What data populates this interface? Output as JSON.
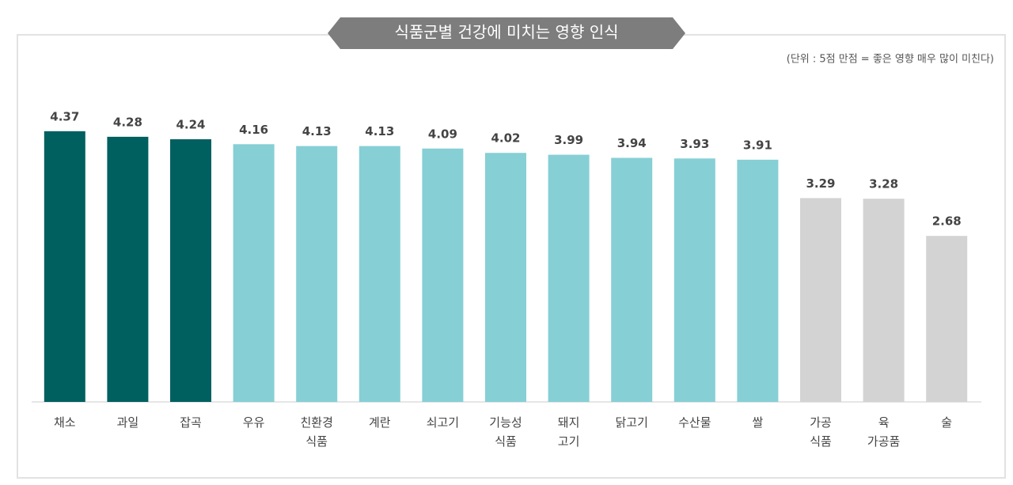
{
  "chart_data": {
    "type": "bar",
    "title": "식품군별 건강에 미치는 영향 인식",
    "subtitle": "(단위 : 5점 만점 = 좋은 영향 매우 많이 미친다)",
    "categories": [
      "채소",
      "과일",
      "잡곡",
      "우유",
      "친환경\n식품",
      "계란",
      "쇠고기",
      "기능성\n식품",
      "돼지\n고기",
      "닭고기",
      "수산물",
      "쌀",
      "가공\n식품",
      "육\n가공품",
      "술"
    ],
    "values": [
      4.37,
      4.28,
      4.24,
      4.16,
      4.13,
      4.13,
      4.09,
      4.02,
      3.99,
      3.94,
      3.93,
      3.91,
      3.29,
      3.28,
      2.68
    ],
    "colors": [
      "#00605f",
      "#00605f",
      "#00605f",
      "#86cfd5",
      "#86cfd5",
      "#86cfd5",
      "#86cfd5",
      "#86cfd5",
      "#86cfd5",
      "#86cfd5",
      "#86cfd5",
      "#86cfd5",
      "#d3d3d3",
      "#d3d3d3",
      "#d3d3d3"
    ],
    "ylim": [
      0,
      5
    ]
  }
}
